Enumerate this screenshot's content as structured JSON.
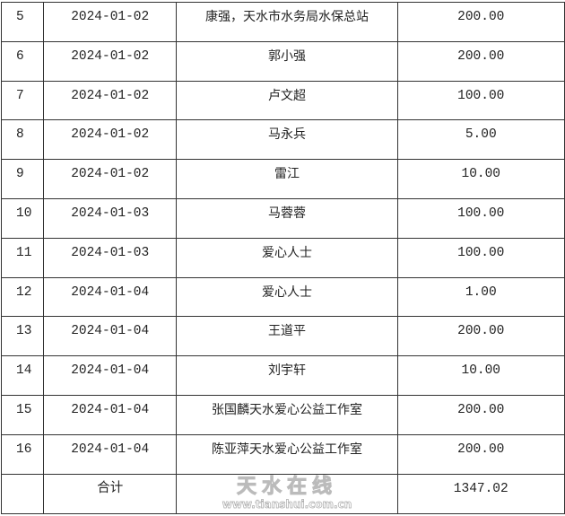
{
  "rows": [
    {
      "no": "5",
      "date": "2024-01-02",
      "name": "康强，天水市水务局水保总站",
      "amount": "200.00"
    },
    {
      "no": "6",
      "date": "2024-01-02",
      "name": "郭小强",
      "amount": "200.00"
    },
    {
      "no": "7",
      "date": "2024-01-02",
      "name": "卢文超",
      "amount": "100.00"
    },
    {
      "no": "8",
      "date": "2024-01-02",
      "name": "马永兵",
      "amount": "5.00"
    },
    {
      "no": "9",
      "date": "2024-01-02",
      "name": "雷江",
      "amount": "10.00"
    },
    {
      "no": "10",
      "date": "2024-01-03",
      "name": "马蓉蓉",
      "amount": "100.00"
    },
    {
      "no": "11",
      "date": "2024-01-03",
      "name": "爱心人士",
      "amount": "100.00"
    },
    {
      "no": "12",
      "date": "2024-01-04",
      "name": "爱心人士",
      "amount": "1.00"
    },
    {
      "no": "13",
      "date": "2024-01-04",
      "name": "王道平",
      "amount": "200.00"
    },
    {
      "no": "14",
      "date": "2024-01-04",
      "name": "刘宇轩",
      "amount": "10.00"
    },
    {
      "no": "15",
      "date": "2024-01-04",
      "name": "张国麟天水爱心公益工作室",
      "amount": "200.00"
    },
    {
      "no": "16",
      "date": "2024-01-04",
      "name": "陈亚萍天水爱心公益工作室",
      "amount": "200.00"
    }
  ],
  "total": {
    "label": "合计",
    "amount": "1347.02"
  },
  "watermark": {
    "text": "天水在线",
    "url": "www.tianshui.com.cn"
  }
}
